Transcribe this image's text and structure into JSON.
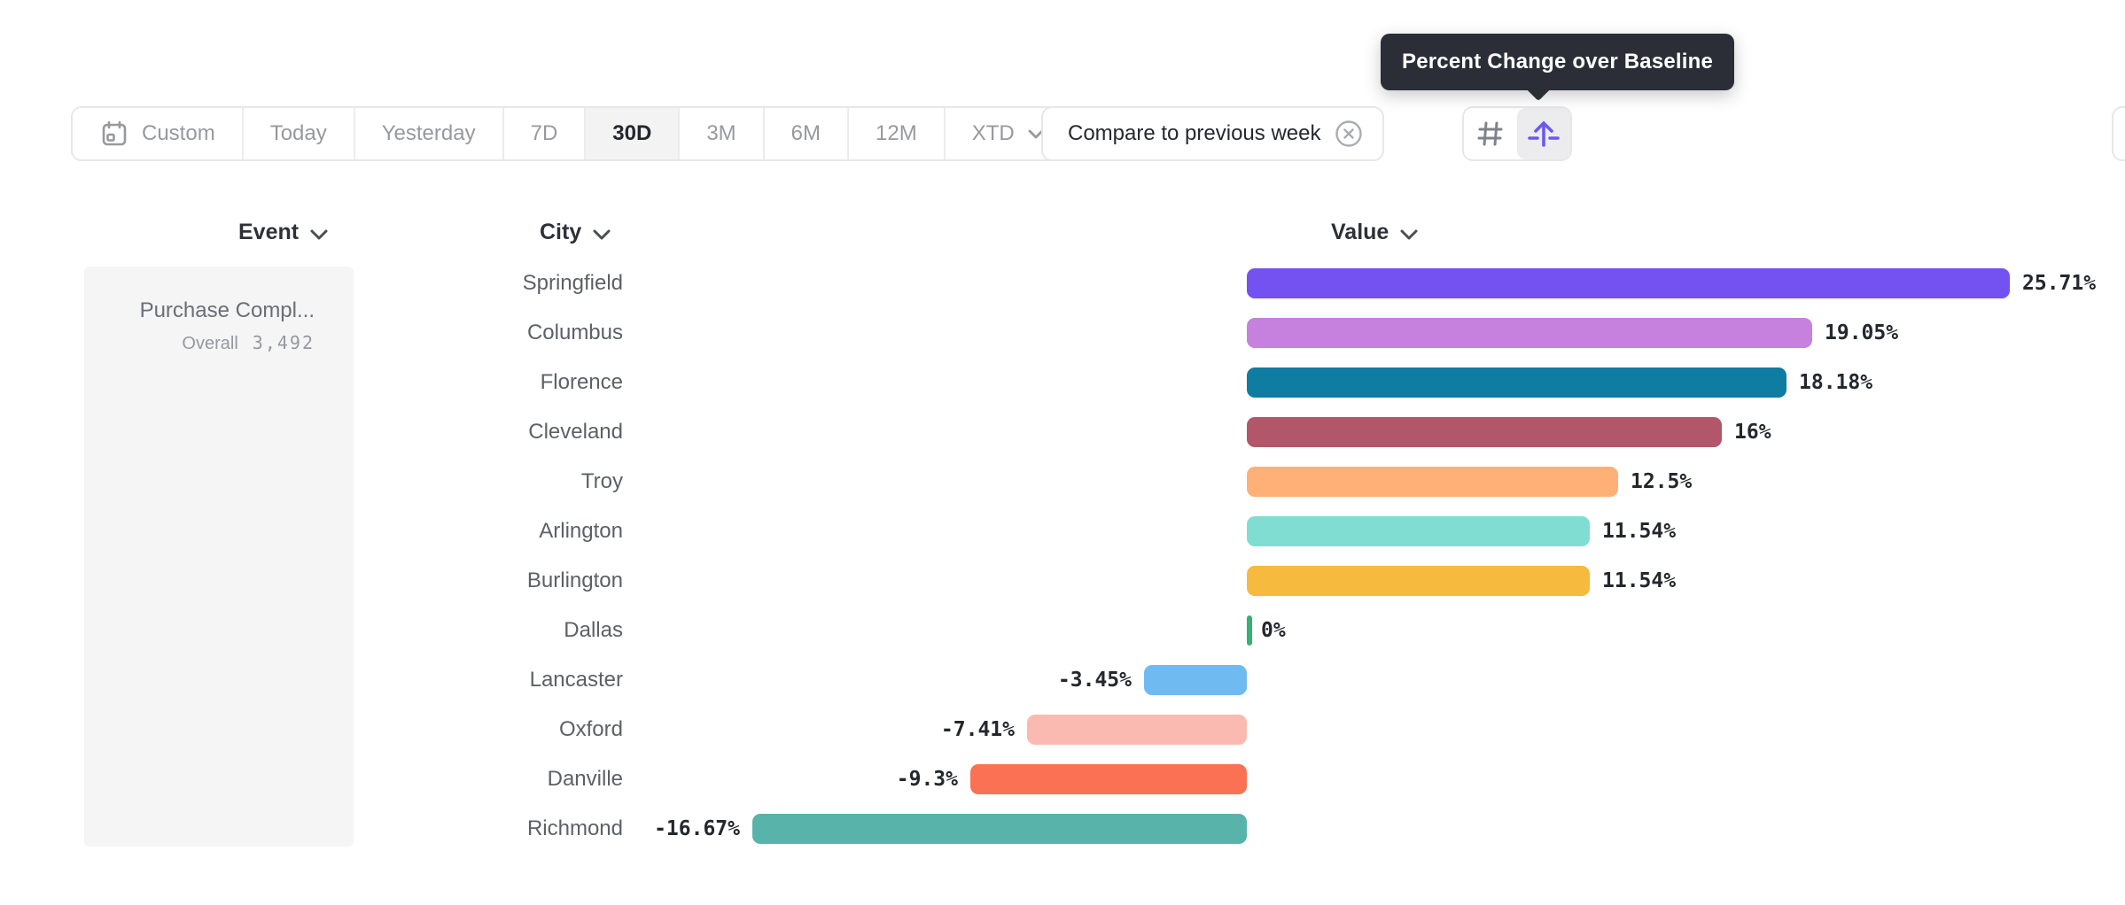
{
  "tooltip": {
    "text": "Percent Change over Baseline"
  },
  "toolbar": {
    "date_ranges": [
      {
        "label": "Custom",
        "icon": "calendar",
        "selected": false
      },
      {
        "label": "Today",
        "selected": false
      },
      {
        "label": "Yesterday",
        "selected": false
      },
      {
        "label": "7D",
        "selected": false
      },
      {
        "label": "30D",
        "selected": true
      },
      {
        "label": "3M",
        "selected": false
      },
      {
        "label": "6M",
        "selected": false
      },
      {
        "label": "12M",
        "selected": false
      },
      {
        "label": "XTD",
        "selected": false,
        "chevron": true
      }
    ],
    "compare": {
      "label": "Compare to previous week",
      "close_icon": "circle-x"
    },
    "view_toggle": [
      {
        "name": "grid-view",
        "icon": "hash",
        "selected": false
      },
      {
        "name": "baseline-view",
        "icon": "arrow-up-baseline",
        "selected": true,
        "accent": "#6d57ee"
      }
    ]
  },
  "columns": {
    "event": "Event",
    "city": "City",
    "value": "Value"
  },
  "event_panel": {
    "title": "Purchase Compl...",
    "overall_label": "Overall",
    "overall_value": "3,492"
  },
  "chart_data": {
    "type": "bar",
    "orientation": "horizontal",
    "title": "Percent Change over Baseline",
    "value_unit": "%",
    "xlim": [
      -16.67,
      25.71
    ],
    "baseline": 0,
    "categories": [
      "Springfield",
      "Columbus",
      "Florence",
      "Cleveland",
      "Troy",
      "Arlington",
      "Burlington",
      "Dallas",
      "Lancaster",
      "Oxford",
      "Danville",
      "Richmond"
    ],
    "values": [
      25.71,
      19.05,
      18.18,
      16,
      12.5,
      11.54,
      11.54,
      0,
      -3.45,
      -7.41,
      -9.3,
      -16.67
    ],
    "labels": [
      "25.71%",
      "19.05%",
      "18.18%",
      "16%",
      "12.5%",
      "11.54%",
      "11.54%",
      "0%",
      "-3.45%",
      "-7.41%",
      "-9.3%",
      "-16.67%"
    ],
    "colors": [
      "#7451f1",
      "#c581dd",
      "#0f7ca1",
      "#b25669",
      "#ffb077",
      "#80ddd2",
      "#f5ba3e",
      "#36b173",
      "#6fbaf1",
      "#fbbab1",
      "#fb7154",
      "#58b3aa"
    ]
  }
}
